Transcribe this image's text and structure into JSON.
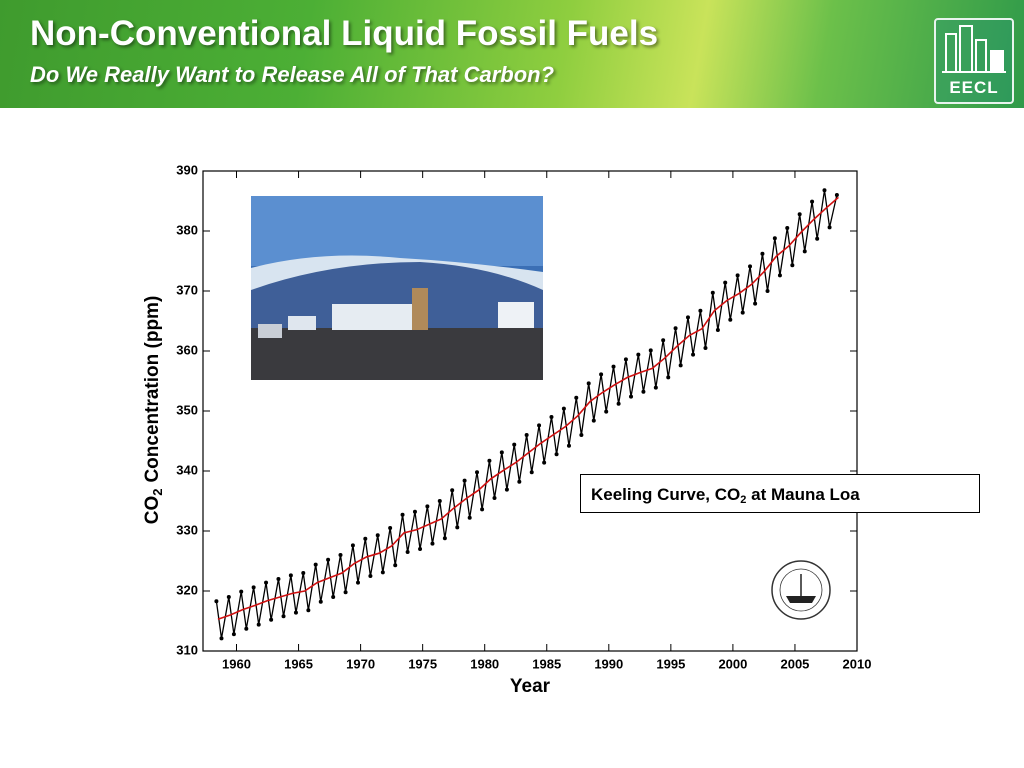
{
  "header": {
    "title": "Non-Conventional Liquid Fossil Fuels",
    "subtitle": "Do We Really Want to Release All of That Carbon?",
    "logo": "EECL"
  },
  "chart_data": {
    "type": "line",
    "x_label": "Year",
    "y_label": [
      "CO",
      "2",
      "Concentration (ppm)"
    ],
    "annotation": [
      "Keeling Curve, CO",
      "2",
      " at Mauna Loa"
    ],
    "x": [
      1958.5,
      1959.5,
      1960.5,
      1961.5,
      1962.5,
      1963.5,
      1964.5,
      1965.5,
      1966.5,
      1967.5,
      1968.5,
      1969.5,
      1970.5,
      1971.5,
      1972.5,
      1973.5,
      1974.5,
      1975.5,
      1976.5,
      1977.5,
      1978.5,
      1979.5,
      1980.5,
      1981.5,
      1982.5,
      1983.5,
      1984.5,
      1985.5,
      1986.5,
      1987.5,
      1988.5,
      1989.5,
      1990.5,
      1991.5,
      1992.5,
      1993.5,
      1994.5,
      1995.5,
      1996.5,
      1997.5,
      1998.5,
      1999.5,
      2000.5,
      2001.5,
      2002.5,
      2003.5,
      2004.5,
      2005.5,
      2006.5,
      2007.5,
      2008.5
    ],
    "series": [
      {
        "color": "#d01010",
        "values": [
          315.3,
          316.0,
          316.9,
          317.6,
          318.4,
          319.0,
          319.6,
          320.0,
          321.4,
          322.2,
          323.0,
          324.6,
          325.7,
          326.3,
          327.5,
          329.7,
          330.2,
          331.1,
          332.0,
          333.8,
          335.4,
          336.8,
          338.7,
          340.1,
          341.4,
          343.0,
          344.6,
          346.0,
          347.4,
          349.2,
          351.6,
          353.1,
          354.4,
          355.6,
          356.4,
          357.1,
          358.8,
          360.8,
          362.6,
          363.7,
          366.7,
          368.4,
          369.6,
          371.1,
          373.2,
          375.8,
          377.5,
          379.8,
          381.9,
          383.8,
          385.6
        ]
      },
      {
        "color": "#000000",
        "x": [
          1958.38,
          1958.79,
          1959.38,
          1959.79,
          1960.38,
          1960.79,
          1961.38,
          1961.79,
          1962.38,
          1962.79,
          1963.38,
          1963.79,
          1964.38,
          1964.79,
          1965.38,
          1965.79,
          1966.38,
          1966.79,
          1967.38,
          1967.79,
          1968.38,
          1968.79,
          1969.38,
          1969.79,
          1970.38,
          1970.79,
          1971.38,
          1971.79,
          1972.38,
          1972.79,
          1973.38,
          1973.79,
          1974.38,
          1974.79,
          1975.38,
          1975.79,
          1976.38,
          1976.79,
          1977.38,
          1977.79,
          1978.38,
          1978.79,
          1979.38,
          1979.79,
          1980.38,
          1980.79,
          1981.38,
          1981.79,
          1982.38,
          1982.79,
          1983.38,
          1983.79,
          1984.38,
          1984.79,
          1985.38,
          1985.79,
          1986.38,
          1986.79,
          1987.38,
          1987.79,
          1988.38,
          1988.79,
          1989.38,
          1989.79,
          1990.38,
          1990.79,
          1991.38,
          1991.79,
          1992.38,
          1992.79,
          1993.38,
          1993.79,
          1994.38,
          1994.79,
          1995.38,
          1995.79,
          1996.38,
          1996.79,
          1997.38,
          1997.79,
          1998.38,
          1998.79,
          1999.38,
          1999.79,
          2000.38,
          2000.79,
          2001.38,
          2001.79,
          2002.38,
          2002.79,
          2003.38,
          2003.79,
          2004.38,
          2004.79,
          2005.38,
          2005.79,
          2006.38,
          2006.79,
          2007.38,
          2007.79,
          2008.38
        ],
        "values": [
          318.3,
          312.1,
          319.0,
          312.8,
          319.9,
          313.7,
          320.6,
          314.4,
          321.4,
          315.2,
          322.0,
          315.8,
          322.6,
          316.4,
          323.0,
          316.8,
          324.4,
          318.2,
          325.2,
          319.0,
          326.0,
          319.8,
          327.6,
          321.4,
          328.7,
          322.5,
          329.3,
          323.1,
          330.5,
          324.3,
          332.7,
          326.5,
          333.2,
          327.0,
          334.1,
          327.9,
          335.0,
          328.8,
          336.8,
          330.6,
          338.4,
          332.2,
          339.8,
          333.6,
          341.7,
          335.5,
          343.1,
          336.9,
          344.4,
          338.2,
          346.0,
          339.8,
          347.6,
          341.4,
          349.0,
          342.8,
          350.4,
          344.2,
          352.2,
          346.0,
          354.6,
          348.4,
          356.1,
          349.9,
          357.4,
          351.2,
          358.6,
          352.4,
          359.4,
          353.2,
          360.1,
          353.9,
          361.8,
          355.6,
          363.8,
          357.6,
          365.6,
          359.4,
          366.7,
          360.5,
          369.7,
          363.5,
          371.4,
          365.2,
          372.6,
          366.4,
          374.1,
          367.9,
          376.2,
          370.0,
          378.8,
          372.6,
          380.5,
          374.3,
          382.8,
          376.6,
          384.9,
          378.7,
          386.8,
          380.6,
          386.0
        ]
      }
    ],
    "xlim": [
      1957.3,
      2010
    ],
    "xticks": [
      1960,
      1965,
      1970,
      1975,
      1980,
      1985,
      1990,
      1995,
      2000,
      2005,
      2010
    ],
    "ylim": [
      310,
      390
    ],
    "yticks": [
      310,
      320,
      330,
      340,
      350,
      360,
      370,
      380,
      390
    ]
  }
}
